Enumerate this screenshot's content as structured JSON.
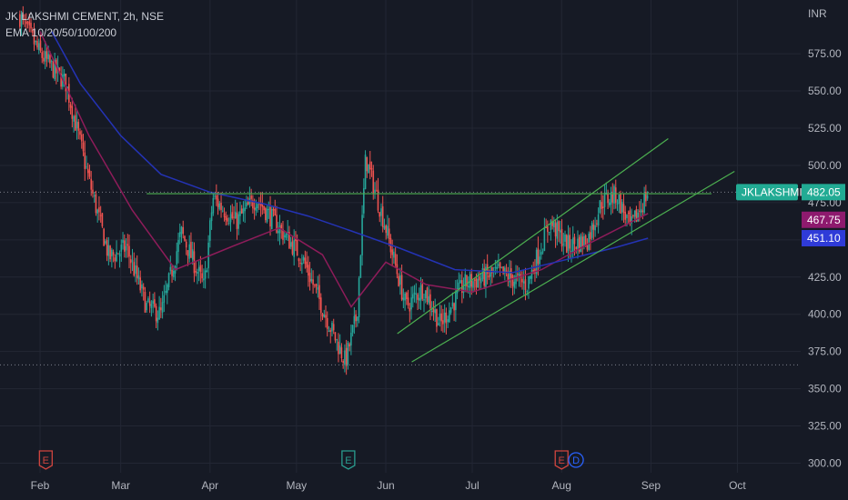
{
  "header": {
    "symbol_line": "JK LAKSHMI CEMENT, 2h, NSE",
    "indicator_line": "EMA 10/20/50/100/200"
  },
  "colors": {
    "background": "#161a25",
    "grid": "#232734",
    "up_candle": "#26a69a",
    "down_candle": "#ef5350",
    "ema_fast": "#8e1c5a",
    "ema_slow": "#2433b5",
    "trendline": "#4caf50",
    "label_teal": "#22ab94",
    "label_purple": "#8e1a6e",
    "label_blue": "#2f3bd8",
    "axis_text": "#b2b5be",
    "event_red": "#d0453f",
    "event_teal": "#2a9d8f",
    "event_blue": "#2962ff"
  },
  "chart_data": {
    "type": "candlestick",
    "currency_label": "INR",
    "x_labels": [
      "Feb",
      "Mar",
      "Apr",
      "May",
      "Jun",
      "Jul",
      "Aug",
      "Sep",
      "Oct"
    ],
    "y_ticks": [
      575,
      550,
      525,
      500,
      475,
      450,
      425,
      400,
      375,
      350,
      325,
      300
    ],
    "ylim": [
      295,
      612
    ],
    "price_path": [
      [
        "Jan 25",
        600
      ],
      [
        "Feb 1",
        575
      ],
      [
        "Feb 10",
        555
      ],
      [
        "Feb 18",
        490
      ],
      [
        "Feb 25",
        438
      ],
      [
        "Mar 3",
        445
      ],
      [
        "Mar 10",
        405
      ],
      [
        "Mar 15",
        400
      ],
      [
        "Mar 22",
        455
      ],
      [
        "Mar 30",
        418
      ],
      [
        "Apr 2",
        478
      ],
      [
        "Apr 10",
        462
      ],
      [
        "Apr 17",
        478
      ],
      [
        "Apr 25",
        458
      ],
      [
        "May 3",
        438
      ],
      [
        "May 12",
        395
      ],
      [
        "May 18",
        368
      ],
      [
        "May 22",
        400
      ],
      [
        "May 25",
        505
      ],
      [
        "Jun 1",
        458
      ],
      [
        "Jun 8",
        405
      ],
      [
        "Jun 14",
        418
      ],
      [
        "Jun 20",
        393
      ],
      [
        "Jun 28",
        420
      ],
      [
        "Jul 10",
        428
      ],
      [
        "Jul 20",
        420
      ],
      [
        "Jul 28",
        462
      ],
      [
        "Aug 3",
        446
      ],
      [
        "Aug 10",
        450
      ],
      [
        "Aug 15",
        476
      ],
      [
        "Aug 20",
        480
      ],
      [
        "Aug 25",
        458
      ],
      [
        "Aug 31",
        482
      ]
    ],
    "ema_fast_path": [
      [
        "Feb 1",
        590
      ],
      [
        "Feb 18",
        520
      ],
      [
        "Mar 5",
        470
      ],
      [
        "Mar 20",
        430
      ],
      [
        "Apr 8",
        445
      ],
      [
        "Apr 25",
        458
      ],
      [
        "May 10",
        440
      ],
      [
        "May 20",
        405
      ],
      [
        "Jun 1",
        435
      ],
      [
        "Jun 15",
        420
      ],
      [
        "Jul 1",
        415
      ],
      [
        "Jul 25",
        430
      ],
      [
        "Aug 10",
        447
      ],
      [
        "Aug 31",
        467.75
      ]
    ],
    "ema_slow_path": [
      [
        "Feb 5",
        590
      ],
      [
        "Feb 15",
        555
      ],
      [
        "Mar 1",
        520
      ],
      [
        "Mar 15",
        494
      ],
      [
        "Apr 1",
        482
      ],
      [
        "Apr 20",
        474
      ],
      [
        "May 5",
        466
      ],
      [
        "May 20",
        456
      ],
      [
        "Jun 5",
        445
      ],
      [
        "Jun 25",
        430
      ],
      [
        "Jul 15",
        428
      ],
      [
        "Aug 1",
        436
      ],
      [
        "Aug 20",
        445
      ],
      [
        "Aug 31",
        451.1
      ]
    ],
    "trendlines": [
      {
        "from": [
          "Mar 10",
          481
        ],
        "to": [
          "Sep 22",
          481
        ]
      },
      {
        "from": [
          "Jun 5",
          387
        ],
        "to": [
          "Sep 7",
          518
        ]
      },
      {
        "from": [
          "Jun 10",
          368
        ],
        "to": [
          "Sep 30",
          496
        ]
      }
    ],
    "dotted_levels": [
      482.05,
      366
    ],
    "price_labels": [
      {
        "text": "JKLAKSHMI",
        "price": 482.05,
        "color_key": "label_teal"
      },
      {
        "text": "482.05",
        "price": 482.05,
        "color_key": "label_teal"
      },
      {
        "text": "467.75",
        "price": 467.75,
        "color_key": "label_purple"
      },
      {
        "text": "451.10",
        "price": 451.1,
        "color_key": "label_blue"
      }
    ],
    "event_markers": [
      {
        "date": "Feb 3",
        "glyph": "E",
        "color_key": "event_red"
      },
      {
        "date": "May 19",
        "glyph": "E",
        "color_key": "event_teal"
      },
      {
        "date": "Aug 1",
        "glyph": "E",
        "color_key": "event_red"
      },
      {
        "date": "Aug 6",
        "glyph": "D",
        "color_key": "event_blue"
      }
    ]
  }
}
